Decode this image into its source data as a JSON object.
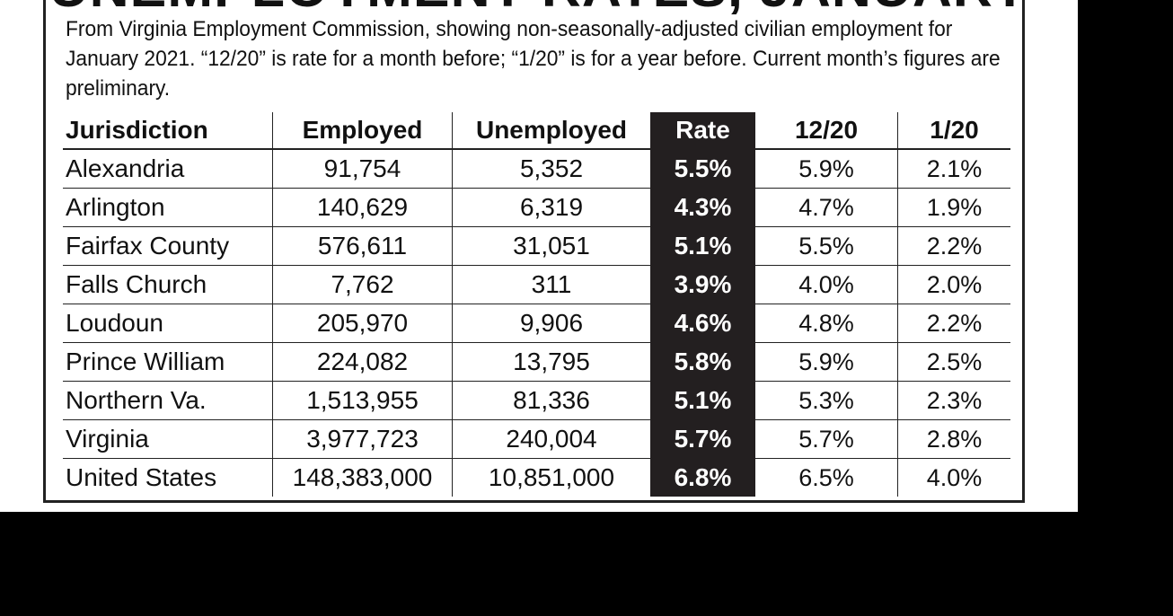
{
  "title": "UNEMPLOYMENT RATES, JANUARY",
  "intro": "From Virginia Employment Commission, showing non-seasonally-adjusted civilian employment for January 2021. “12/20” is rate for a month before; “1/20” is for a year before. Current month’s figures are preliminary.",
  "table": {
    "headers": [
      "Jurisdiction",
      "Employed",
      "Unemployed",
      "Rate",
      "12/20",
      "1/20"
    ],
    "rows": [
      [
        "Alexandria",
        "91,754",
        "5,352",
        "5.5%",
        "5.9%",
        "2.1%"
      ],
      [
        "Arlington",
        "140,629",
        "6,319",
        "4.3%",
        "4.7%",
        "1.9%"
      ],
      [
        "Fairfax County",
        "576,611",
        "31,051",
        "5.1%",
        "5.5%",
        "2.2%"
      ],
      [
        "Falls Church",
        "7,762",
        "311",
        "3.9%",
        "4.0%",
        "2.0%"
      ],
      [
        "Loudoun",
        "205,970",
        "9,906",
        "4.6%",
        "4.8%",
        "2.2%"
      ],
      [
        "Prince William",
        "224,082",
        "13,795",
        "5.8%",
        "5.9%",
        "2.5%"
      ],
      [
        "Northern Va.",
        "1,513,955",
        "81,336",
        "5.1%",
        "5.3%",
        "2.3%"
      ],
      [
        "Virginia",
        "3,977,723",
        "240,004",
        "5.7%",
        "5.7%",
        "2.8%"
      ],
      [
        "United States",
        "148,383,000",
        "10,851,000",
        "6.8%",
        "6.5%",
        "4.0%"
      ]
    ]
  }
}
